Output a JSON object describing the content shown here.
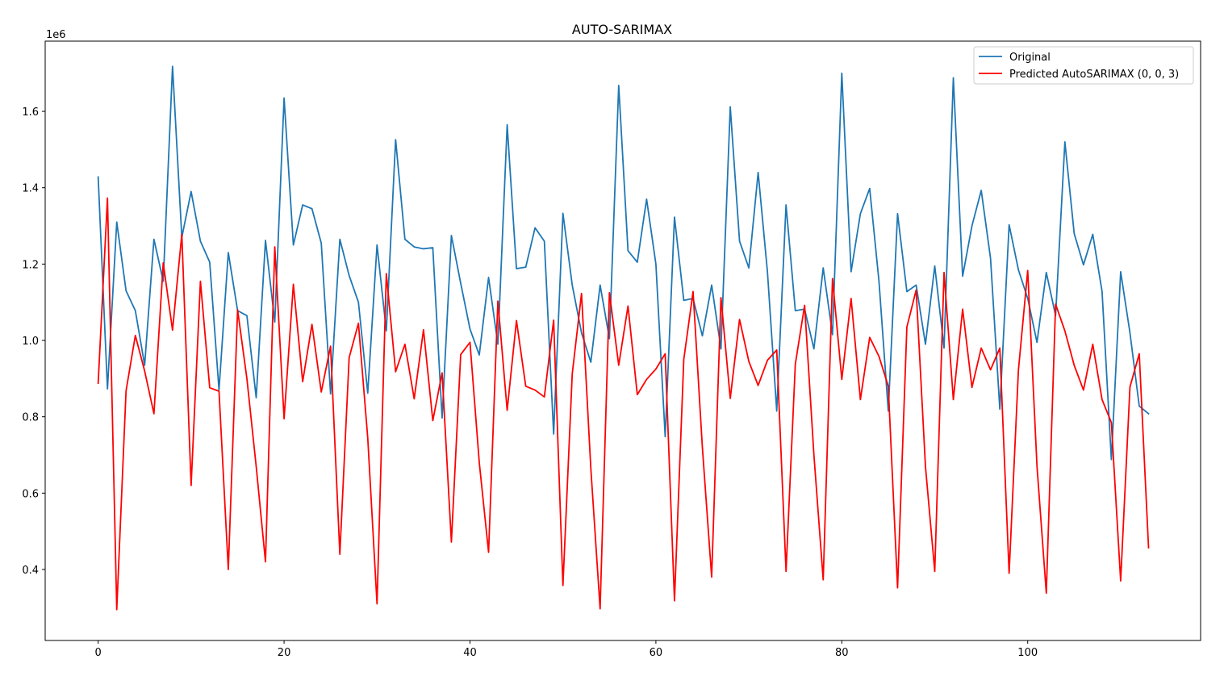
{
  "chart_data": {
    "type": "line",
    "title": "AUTO-SARIMAX",
    "xlabel": "",
    "ylabel": "",
    "y_offset_text": "1e6",
    "xlim": [
      -5.7,
      118.6
    ],
    "ylim": [
      214000,
      1784000
    ],
    "x_ticks": [
      0,
      20,
      40,
      60,
      80,
      100
    ],
    "y_ticks": [
      400000,
      600000,
      800000,
      1000000,
      1200000,
      1400000,
      1600000
    ],
    "y_tick_labels": [
      "0.4",
      "0.6",
      "0.8",
      "1.0",
      "1.2",
      "1.4",
      "1.6"
    ],
    "x_tick_labels": [
      "0",
      "20",
      "40",
      "60",
      "80",
      "100"
    ],
    "grid": false,
    "legend_position": "top-right",
    "series": [
      {
        "name": "Original",
        "color": "#1f77b4",
        "values": [
          1428000,
          873000,
          1310000,
          1130000,
          1078000,
          935000,
          1265000,
          1155000,
          1718000,
          1270000,
          1390000,
          1260000,
          1205000,
          870000,
          1230000,
          1078000,
          1065000,
          850000,
          1262000,
          1048000,
          1635000,
          1250000,
          1355000,
          1345000,
          1255000,
          860000,
          1265000,
          1170000,
          1100000,
          862000,
          1250000,
          1025000,
          1526000,
          1265000,
          1245000,
          1240000,
          1243000,
          797000,
          1275000,
          1150000,
          1030000,
          962000,
          1165000,
          990000,
          1565000,
          1188000,
          1192000,
          1295000,
          1260000,
          755000,
          1333000,
          1145000,
          1020000,
          943000,
          1145000,
          1005000,
          1668000,
          1235000,
          1205000,
          1370000,
          1200000,
          748000,
          1323000,
          1105000,
          1110000,
          1012000,
          1145000,
          978000,
          1612000,
          1260000,
          1190000,
          1440000,
          1180000,
          815000,
          1355000,
          1078000,
          1082000,
          978000,
          1190000,
          1015000,
          1700000,
          1180000,
          1332000,
          1398000,
          1155000,
          815000,
          1332000,
          1128000,
          1145000,
          990000,
          1195000,
          980000,
          1688000,
          1168000,
          1300000,
          1393000,
          1215000,
          820000,
          1303000,
          1185000,
          1110000,
          995000,
          1178000,
          1065000,
          1520000,
          1280000,
          1198000,
          1278000,
          1128000,
          688000,
          1180000,
          1020000,
          828000,
          808000
        ]
      },
      {
        "name": "Predicted AutoSARIMAX (0, 0, 3)",
        "color": "#ff0000",
        "values": [
          888000,
          1373000,
          295000,
          868000,
          1013000,
          920000,
          808000,
          1203000,
          1027000,
          1278000,
          620000,
          1155000,
          876000,
          867000,
          400000,
          1080000,
          900000,
          670000,
          420000,
          1245000,
          795000,
          1147000,
          892000,
          1042000,
          865000,
          985000,
          440000,
          955000,
          1045000,
          745000,
          310000,
          1175000,
          918000,
          990000,
          847000,
          1028000,
          790000,
          915000,
          472000,
          963000,
          995000,
          680000,
          445000,
          1103000,
          817000,
          1052000,
          880000,
          870000,
          852000,
          1053000,
          358000,
          912000,
          1123000,
          665000,
          297000,
          1125000,
          935000,
          1090000,
          858000,
          898000,
          925000,
          965000,
          318000,
          950000,
          1128000,
          720000,
          380000,
          1112000,
          848000,
          1055000,
          945000,
          882000,
          948000,
          975000,
          395000,
          938000,
          1092000,
          700000,
          373000,
          1162000,
          898000,
          1110000,
          845000,
          1008000,
          958000,
          880000,
          352000,
          1035000,
          1132000,
          670000,
          395000,
          1178000,
          845000,
          1082000,
          877000,
          980000,
          923000,
          980000,
          390000,
          922000,
          1183000,
          670000,
          338000,
          1095000,
          1025000,
          935000,
          870000,
          990000,
          845000,
          785000,
          370000,
          878000,
          965000,
          457000
        ]
      }
    ]
  }
}
